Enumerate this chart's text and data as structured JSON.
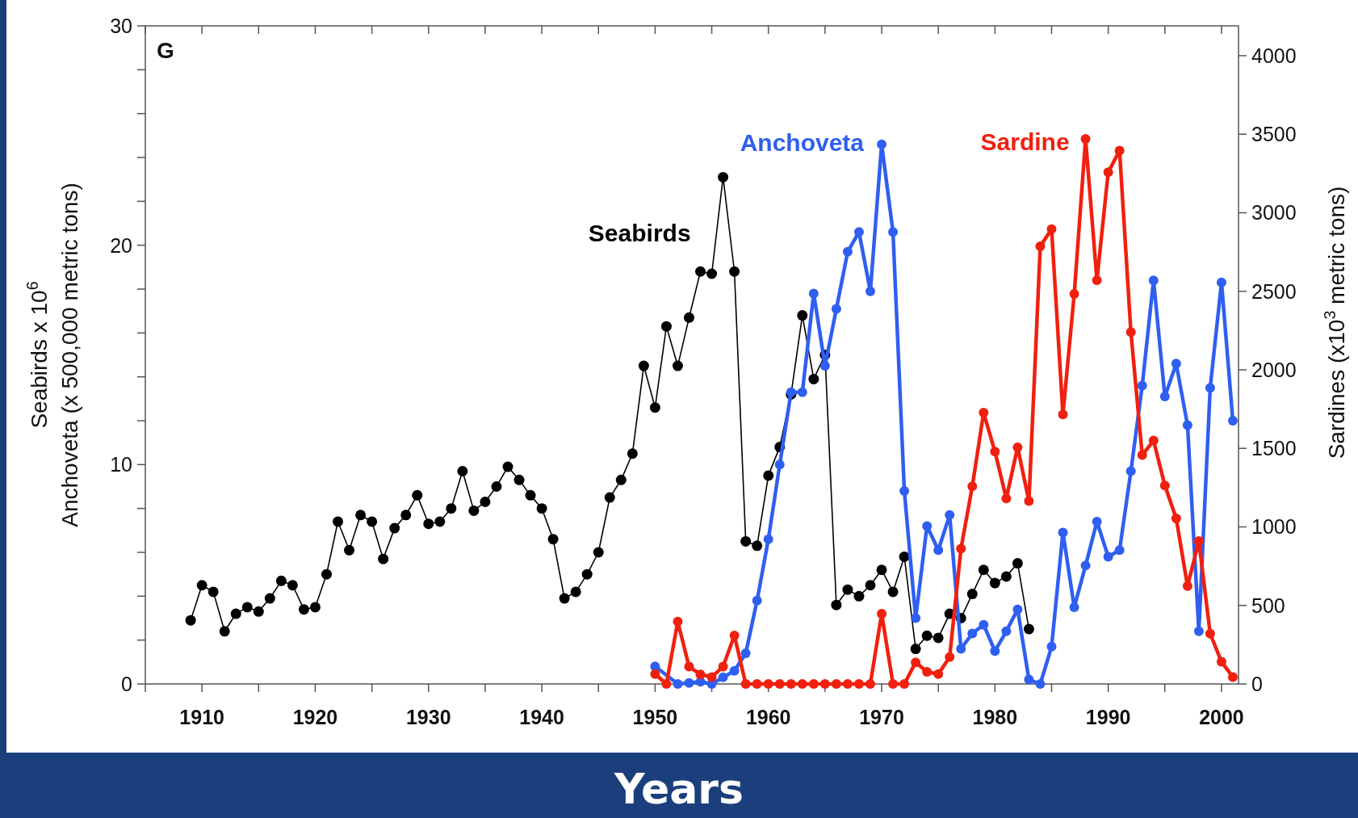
{
  "chart_data": {
    "type": "line",
    "annotations": [
      "G"
    ],
    "xlabel": "Years",
    "ylabel": "Seabirds x 10$^{6}$\nAnchoveta (x 500,000 metric tons)",
    "y2label": "Sardines (x10$^{3}$ metric tons)",
    "xlim": [
      1905,
      2001.5
    ],
    "xticks": [
      {
        "value": 1905,
        "label": null
      },
      1910,
      {
        "value": 1915,
        "label": null
      },
      1920,
      {
        "value": 1925,
        "label": null
      },
      1930,
      {
        "value": 1935,
        "label": null
      },
      1940,
      {
        "value": 1945,
        "label": null
      },
      1950,
      {
        "value": 1955,
        "label": null
      },
      1960,
      {
        "value": 1965,
        "label": null
      },
      1970,
      {
        "value": 1975,
        "label": null
      },
      1980,
      {
        "value": 1985,
        "label": null
      },
      1990,
      {
        "value": 1995,
        "label": null
      },
      2000
    ],
    "ylim": [
      0,
      30
    ],
    "yticks": [
      0,
      {
        "value": 2,
        "label": null
      },
      {
        "value": 4,
        "label": null
      },
      {
        "value": 6,
        "label": null
      },
      {
        "value": 8,
        "label": null
      },
      10,
      {
        "value": 12,
        "label": null
      },
      {
        "value": 14,
        "label": null
      },
      {
        "value": 16,
        "label": null
      },
      {
        "value": 18,
        "label": null
      },
      20,
      {
        "value": 22,
        "label": null
      },
      {
        "value": 24,
        "label": null
      },
      {
        "value": 26,
        "label": null
      },
      {
        "value": 28,
        "label": null
      },
      30
    ],
    "y2lim": [
      0,
      4190
    ],
    "y2ticks": [
      0,
      500,
      1000,
      1500,
      2000,
      2500,
      3000,
      3500,
      4000
    ],
    "grid": false,
    "legend": false,
    "marker": "circle",
    "line_style": "solid",
    "series": [
      {
        "name": "Seabirds",
        "color": "#000000",
        "x": [
          1909,
          1910,
          1911,
          1912,
          1913,
          1914,
          1915,
          1916,
          1917,
          1918,
          1919,
          1920,
          1921,
          1922,
          1923,
          1924,
          1925,
          1926,
          1927,
          1928,
          1929,
          1930,
          1931,
          1932,
          1933,
          1934,
          1935,
          1936,
          1937,
          1938,
          1939,
          1940,
          1941,
          1942,
          1943,
          1944,
          1945,
          1946,
          1947,
          1948,
          1949,
          1950,
          1951,
          1952,
          1953,
          1954,
          1955,
          1956,
          1957,
          1958,
          1959,
          1960,
          1961,
          1962,
          1963,
          1964,
          1965,
          1966,
          1967,
          1968,
          1969,
          1970,
          1971,
          1972,
          1973,
          1974,
          1975,
          1976,
          1977,
          1978,
          1979,
          1980,
          1981,
          1982,
          1983
        ],
        "values": [
          2.9,
          4.5,
          4.2,
          2.4,
          3.2,
          3.5,
          3.3,
          3.9,
          4.7,
          4.5,
          3.4,
          3.5,
          5.0,
          7.4,
          6.1,
          7.7,
          7.4,
          5.7,
          7.1,
          7.7,
          8.6,
          7.3,
          7.4,
          8.0,
          9.7,
          7.9,
          8.3,
          9.0,
          9.9,
          9.3,
          8.6,
          8.0,
          6.6,
          3.9,
          4.2,
          5.0,
          6.0,
          8.5,
          9.3,
          10.5,
          14.5,
          12.6,
          16.3,
          14.5,
          16.7,
          18.8,
          18.7,
          23.1,
          18.8,
          6.5,
          6.3,
          9.5,
          10.8,
          13.2,
          16.8,
          13.9,
          15.0,
          3.6,
          4.3,
          4.0,
          4.5,
          5.2,
          4.2,
          5.8,
          1.6,
          2.2,
          2.1,
          3.2,
          3.0,
          4.1,
          5.2,
          4.6,
          4.9,
          5.5,
          2.5
        ]
      },
      {
        "name": "Anchoveta",
        "color": "#2f5ff0",
        "x": [
          1950,
          1951,
          1952,
          1953,
          1954,
          1955,
          1956,
          1957,
          1958,
          1959,
          1960,
          1961,
          1962,
          1963,
          1964,
          1965,
          1966,
          1967,
          1968,
          1969,
          1970,
          1971,
          1972,
          1973,
          1974,
          1975,
          1976,
          1977,
          1978,
          1979,
          1980,
          1981,
          1982,
          1983,
          1984,
          1985,
          1986,
          1987,
          1988,
          1989,
          1990,
          1991,
          1992,
          1993,
          1994,
          1995,
          1996,
          1997,
          1998,
          1999,
          2000,
          2001
        ],
        "values": [
          0.8,
          null,
          0,
          0.05,
          0.1,
          0,
          0.3,
          0.6,
          1.4,
          3.8,
          6.6,
          10.0,
          13.3,
          13.3,
          17.8,
          14.5,
          17.1,
          19.7,
          20.6,
          17.9,
          24.6,
          20.6,
          8.8,
          3.0,
          7.2,
          6.1,
          7.7,
          1.6,
          2.3,
          2.7,
          1.5,
          2.4,
          3.4,
          0.2,
          0,
          1.7,
          6.9,
          3.5,
          5.4,
          7.4,
          5.8,
          6.1,
          9.7,
          13.6,
          18.4,
          13.1,
          14.6,
          11.8,
          2.4,
          13.5,
          18.3,
          12.0
        ]
      },
      {
        "name": "Sardine",
        "color": "#f0200f",
        "axis": "y2",
        "x": [
          1950,
          1951,
          1952,
          1953,
          1954,
          1955,
          1956,
          1957,
          1958,
          1959,
          1960,
          1961,
          1962,
          1963,
          1964,
          1965,
          1966,
          1967,
          1968,
          1969,
          1970,
          1971,
          1972,
          1973,
          1974,
          1975,
          1976,
          1977,
          1978,
          1979,
          1980,
          1981,
          1982,
          1983,
          1984,
          1985,
          1986,
          1987,
          1988,
          1989,
          1990,
          1991,
          1992,
          1993,
          1994,
          1995,
          1996,
          1997,
          1998,
          1999,
          2000,
          2001
        ],
        "values": [
          63,
          0,
          397,
          110,
          61,
          44,
          110,
          309,
          0,
          0,
          0,
          0,
          0,
          0,
          0,
          0,
          0,
          0,
          0,
          0,
          447,
          0,
          0,
          138,
          77,
          63,
          171,
          861,
          1258,
          1727,
          1479,
          1181,
          1506,
          1164,
          2786,
          2896,
          1716,
          2483,
          3470,
          2571,
          3258,
          3396,
          2240,
          1457,
          1550,
          1263,
          1054,
          623,
          910,
          320,
          141,
          44
        ]
      }
    ]
  }
}
